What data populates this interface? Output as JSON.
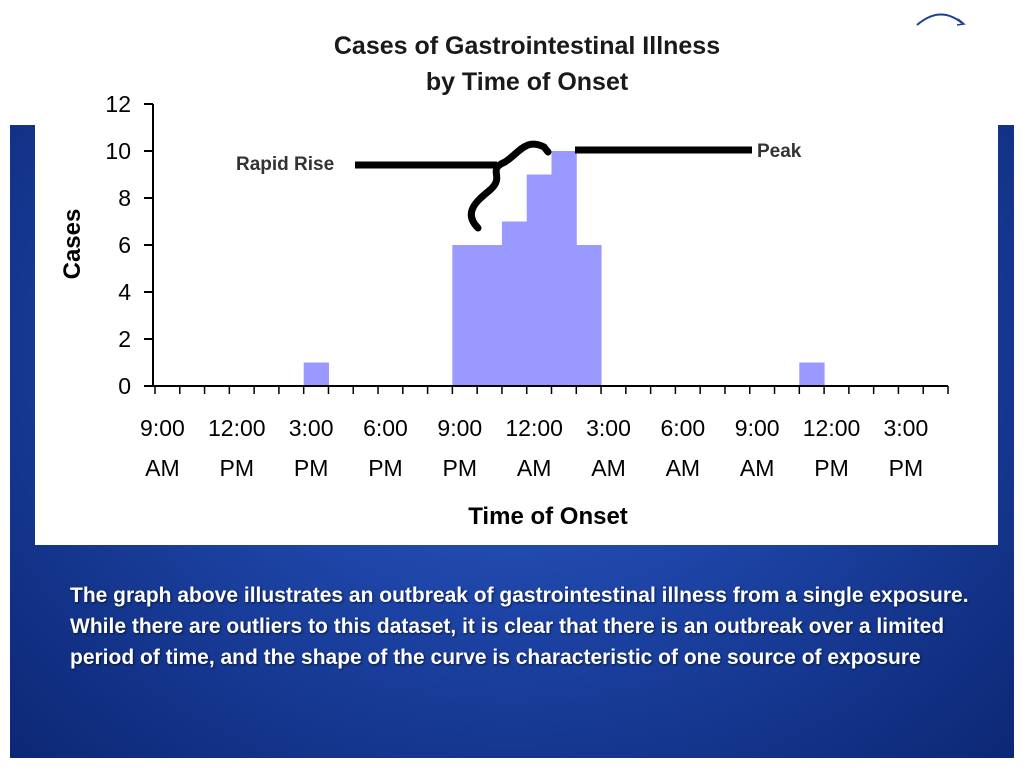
{
  "colors": {
    "bar": "#9999ff",
    "slide_bg": "#1d44a6",
    "text_dark": "#000000"
  },
  "logo_icon": "arc-swoosh-icon",
  "chart_data": {
    "type": "bar",
    "title_lines": [
      "Cases of Gastrointestinal Illness",
      "by Time of Onset"
    ],
    "xlabel": "Time of Onset",
    "ylabel": "Cases",
    "ylim": [
      0,
      12
    ],
    "yticks": [
      0,
      2,
      4,
      6,
      8,
      10,
      12
    ],
    "x_tick_labels": [
      [
        "9:00",
        "AM"
      ],
      [
        "12:00",
        "PM"
      ],
      [
        "3:00",
        "PM"
      ],
      [
        "6:00",
        "PM"
      ],
      [
        "9:00",
        "PM"
      ],
      [
        "12:00",
        "AM"
      ],
      [
        "3:00",
        "AM"
      ],
      [
        "6:00",
        "AM"
      ],
      [
        "9:00",
        "AM"
      ],
      [
        "12:00",
        "PM"
      ],
      [
        "3:00",
        "PM"
      ]
    ],
    "bin_hours": 1,
    "start_label": "9:00 AM",
    "values": [
      0,
      0,
      0,
      0,
      0,
      0,
      1,
      0,
      0,
      0,
      0,
      0,
      6,
      6,
      7,
      9,
      10,
      6,
      0,
      0,
      0,
      0,
      0,
      0,
      0,
      0,
      1,
      0,
      0,
      0,
      0,
      0
    ],
    "annotations": [
      {
        "text": "Rapid Rise"
      },
      {
        "text": "Peak"
      }
    ]
  },
  "caption": "The graph above illustrates an outbreak of gastrointestinal illness from a single exposure. While there are outliers to this dataset, it is clear that there is an outbreak over a limited period of time, and the shape of the curve is characteristic of one source of exposure"
}
